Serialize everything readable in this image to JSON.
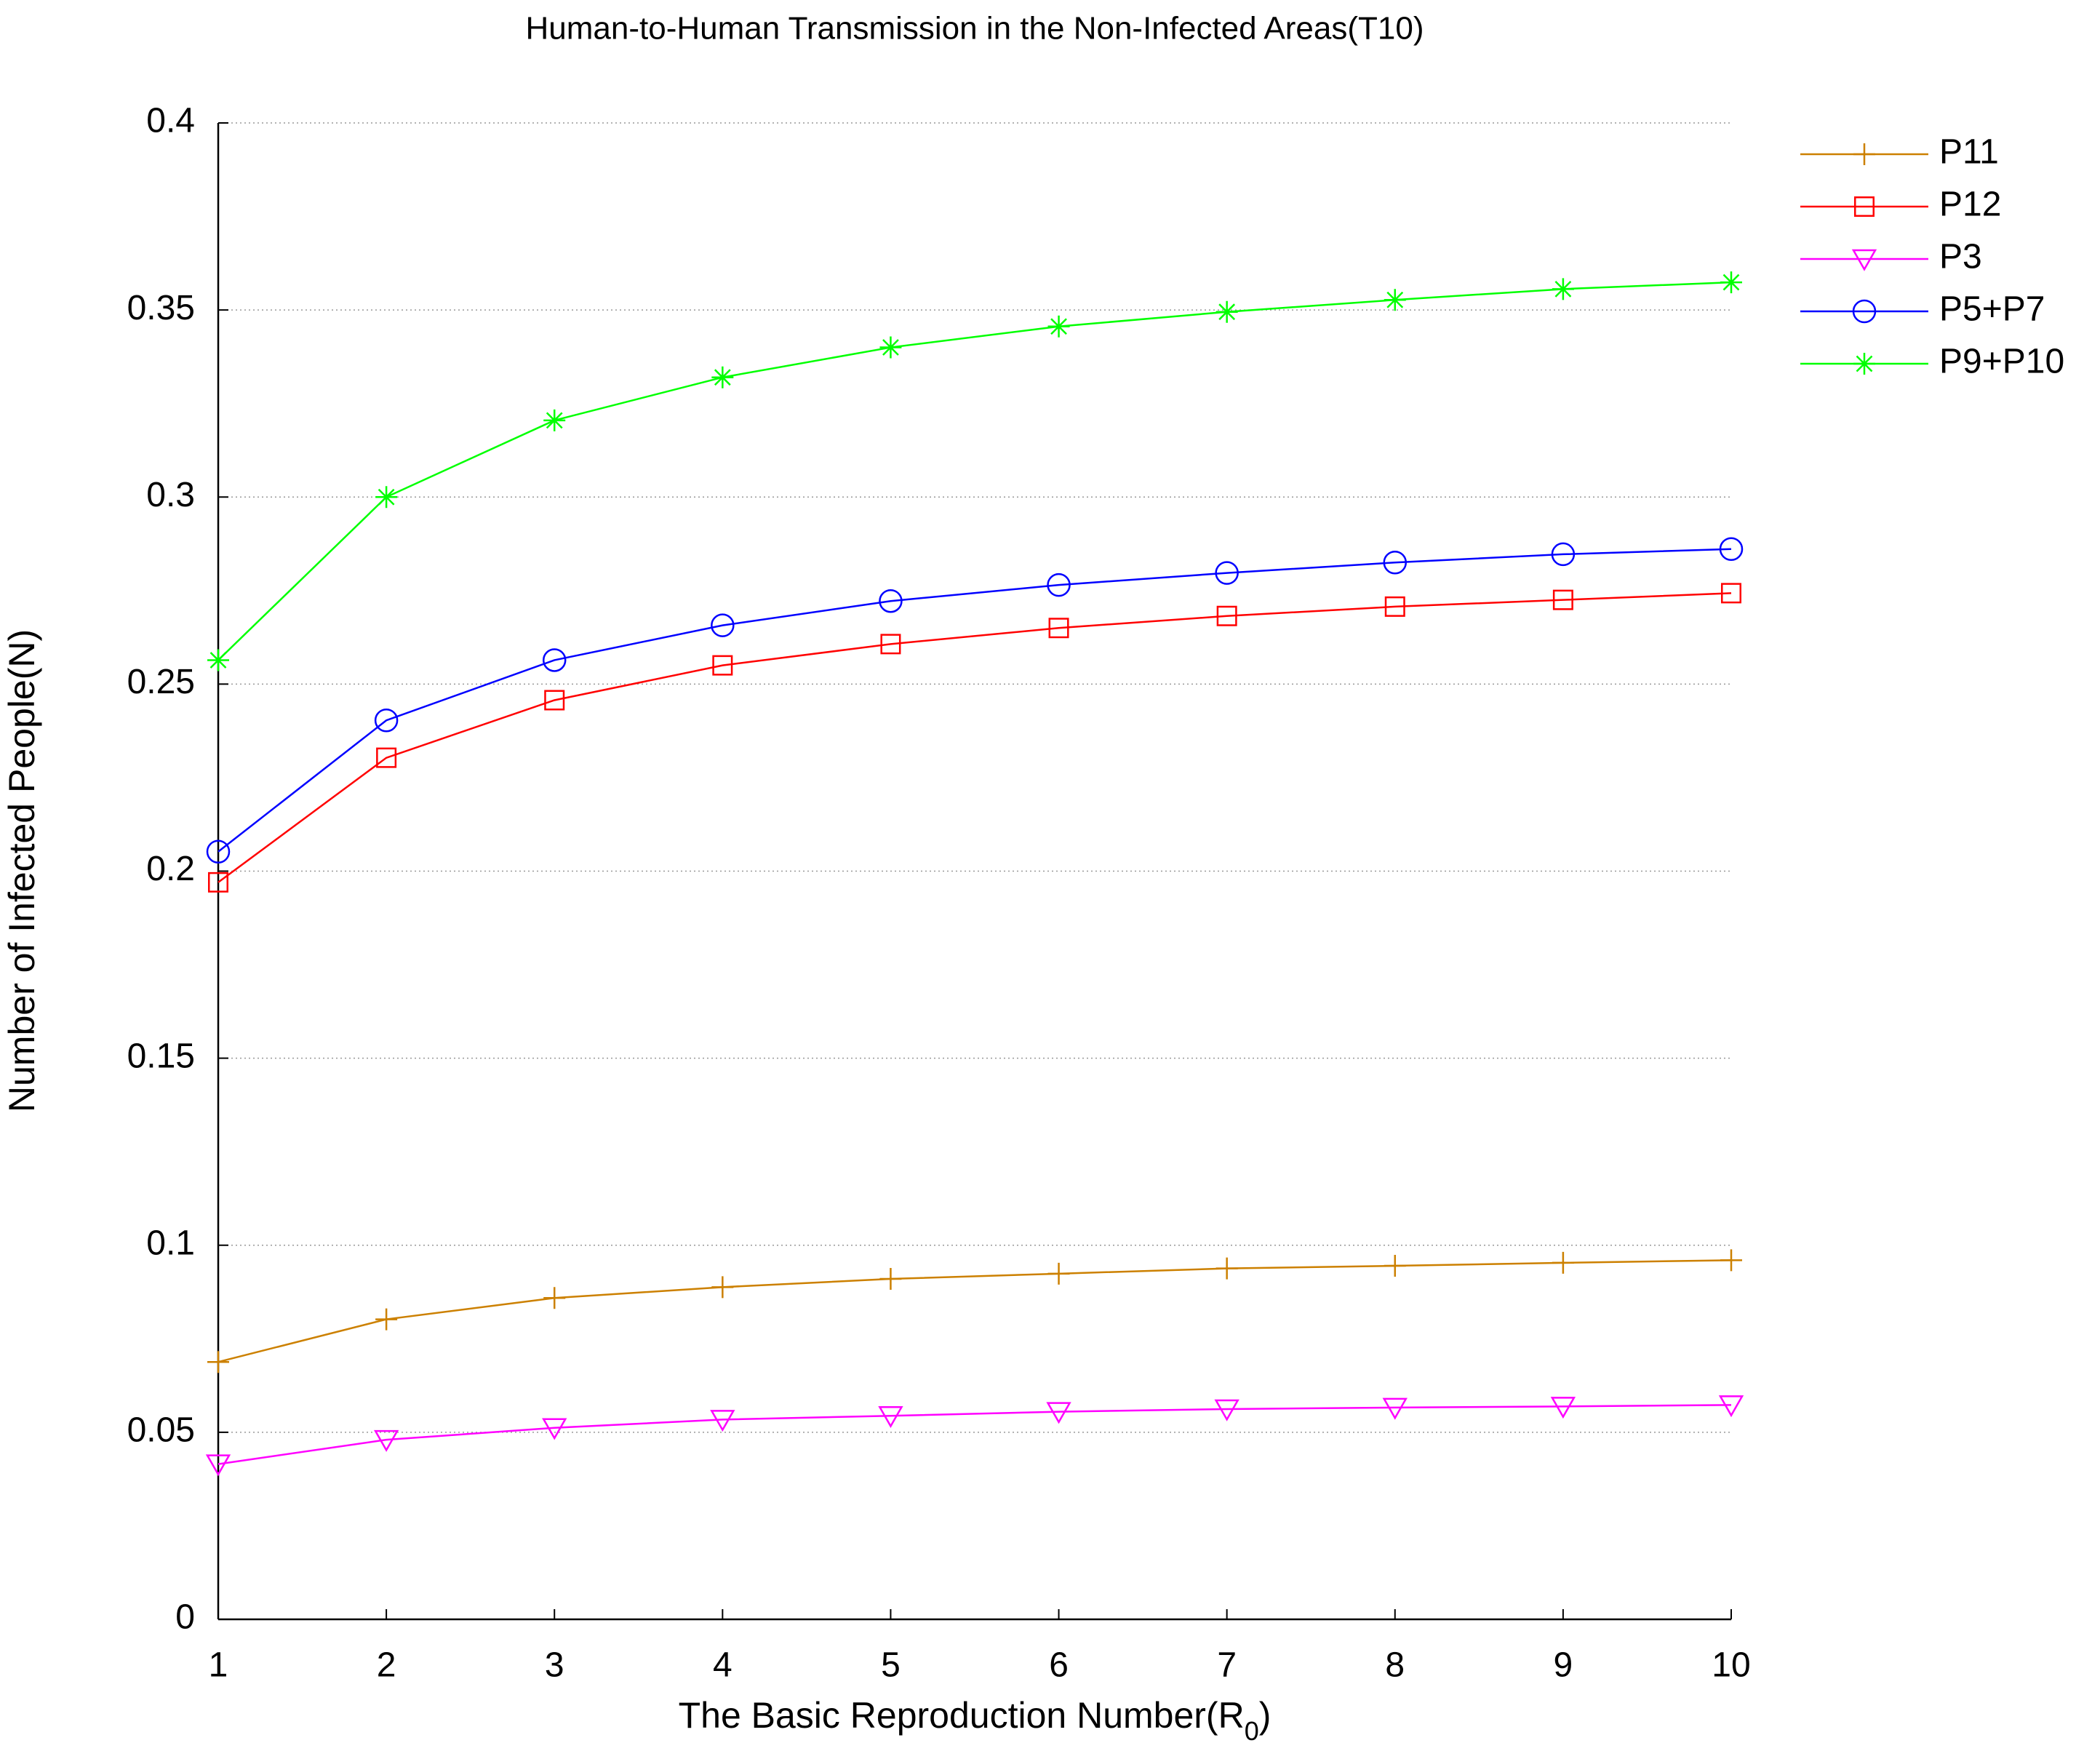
{
  "chart_data": {
    "type": "line",
    "title": "Human-to-Human Transmission in the Non-Infected Areas(T10)",
    "xlabel": [
      "The Basic Reproduction Number(R",
      "0",
      ")"
    ],
    "ylabel": "Number of Infected People(N)",
    "x": [
      1,
      2,
      3,
      4,
      5,
      6,
      7,
      8,
      9,
      10
    ],
    "xlim": [
      1,
      10
    ],
    "xticks": [
      1,
      2,
      3,
      4,
      5,
      6,
      7,
      8,
      9,
      10
    ],
    "ylim": [
      0,
      0.4
    ],
    "yticks": [
      0,
      0.05,
      0.1,
      0.15,
      0.2,
      0.25,
      0.3,
      0.35,
      0.4
    ],
    "grid": true,
    "legend": "outside-right-top",
    "series": [
      {
        "name": "P11",
        "color": "#cc8000",
        "marker": "plus",
        "values": [
          0.0688,
          0.0802,
          0.0859,
          0.0888,
          0.091,
          0.0924,
          0.0938,
          0.0945,
          0.0953,
          0.096
        ]
      },
      {
        "name": "P12",
        "color": "#ff0000",
        "marker": "square",
        "values": [
          0.197,
          0.2303,
          0.2457,
          0.255,
          0.2607,
          0.265,
          0.2682,
          0.2707,
          0.2725,
          0.2743
        ]
      },
      {
        "name": "P3",
        "color": "#ff00ff",
        "marker": "triangle-down",
        "values": [
          0.0415,
          0.048,
          0.0512,
          0.0534,
          0.0544,
          0.0555,
          0.0562,
          0.0566,
          0.0569,
          0.0573
        ]
      },
      {
        "name": "P5+P7",
        "color": "#0000ff",
        "marker": "circle",
        "values": [
          0.2052,
          0.2403,
          0.2564,
          0.2657,
          0.2722,
          0.2765,
          0.2797,
          0.2825,
          0.2847,
          0.2861
        ]
      },
      {
        "name": "P9+P10",
        "color": "#00ff00",
        "marker": "asterisk",
        "values": [
          0.2564,
          0.3,
          0.3205,
          0.332,
          0.34,
          0.3456,
          0.3495,
          0.3527,
          0.3556,
          0.3574
        ]
      }
    ]
  }
}
